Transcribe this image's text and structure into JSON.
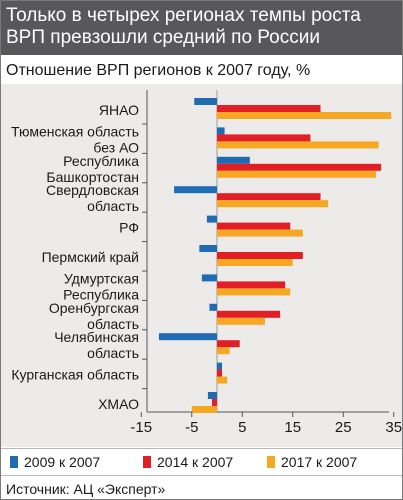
{
  "title": "Только в четырех регионах темпы роста ВРП превзошли средний по России",
  "chart_data": {
    "type": "bar",
    "orientation": "horizontal",
    "title": "Только в четырех регионах темпы роста ВРП превзошли средний по России",
    "subtitle": "Отношение ВРП регионов к 2007 году, %",
    "categories": [
      [
        "ЯНАО"
      ],
      [
        "Тюменская область",
        "без АО"
      ],
      [
        "Республика",
        "Башкортостан"
      ],
      [
        "Свердловская",
        "область"
      ],
      [
        "РФ"
      ],
      [
        "Пермский край"
      ],
      [
        "Удмуртская",
        "Республика"
      ],
      [
        "Оренбургская",
        "область"
      ],
      [
        "Челябинская",
        "область"
      ],
      [
        "Курганская область"
      ],
      [
        "ХМАО"
      ]
    ],
    "series": [
      {
        "name": "2009 к 2007",
        "color": "#1f6cb5",
        "values": [
          -4.5,
          1.5,
          6.5,
          -8.5,
          -2.0,
          -3.5,
          -3.0,
          -1.5,
          -11.5,
          1.0,
          -1.8
        ]
      },
      {
        "name": "2014 к 2007",
        "color": "#e31f26",
        "values": [
          20.5,
          18.5,
          32.5,
          20.5,
          14.5,
          17.0,
          13.5,
          12.5,
          4.5,
          1.0,
          -1.0
        ]
      },
      {
        "name": "2017 к 2007",
        "color": "#f7a823",
        "values": [
          34.5,
          32.0,
          31.5,
          22.0,
          17.0,
          15.0,
          14.5,
          9.5,
          2.5,
          2.0,
          -5.0
        ]
      }
    ],
    "x_ticks": [
      -15,
      -5,
      5,
      15,
      25,
      35
    ],
    "x_tick_labels": [
      "-15",
      "-5",
      "5",
      "15",
      "25",
      "35"
    ],
    "xlim": [
      -16,
      36
    ],
    "grid": false,
    "legend_position": "bottom"
  },
  "source": "Источник: АЦ «Эксперт»"
}
